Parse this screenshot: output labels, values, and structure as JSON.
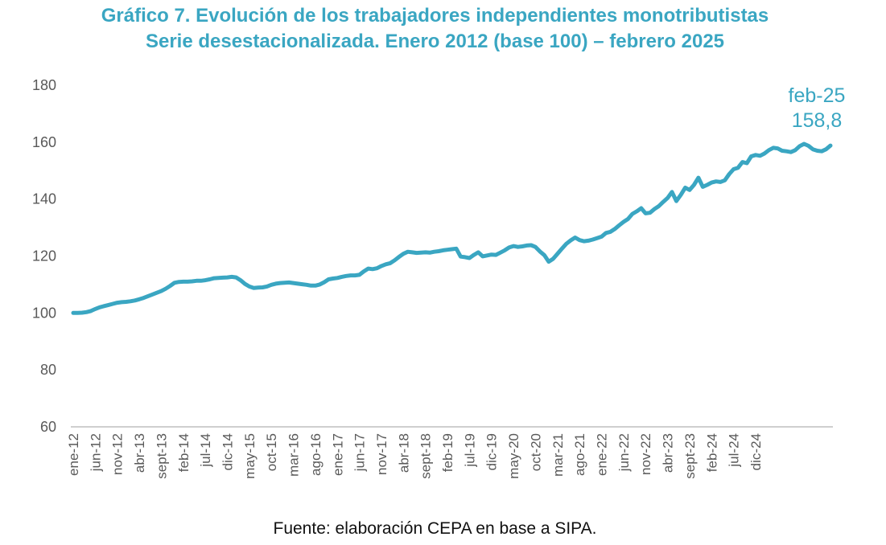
{
  "title_line1": "Gráfico 7. Evolución de los trabajadores independientes monotributistas",
  "title_line2": "Serie desestacionalizada. Enero 2012 (base 100) – febrero 2025",
  "source": "Fuente: elaboración CEPA en base a SIPA.",
  "colors": {
    "accent": "#3aa6c2",
    "axis": "#bfbfbf",
    "tick_text": "#595959"
  },
  "chart_data": {
    "type": "line",
    "ylim": [
      60,
      180
    ],
    "yticks": [
      60,
      80,
      100,
      120,
      140,
      160,
      180
    ],
    "xtick_labels": [
      "ene-12",
      "jun-12",
      "nov-12",
      "abr-13",
      "sept-13",
      "feb-14",
      "jul-14",
      "dic-14",
      "may-15",
      "oct-15",
      "mar-16",
      "ago-16",
      "ene-17",
      "jun-17",
      "nov-17",
      "abr-18",
      "sept-18",
      "feb-19",
      "jul-19",
      "dic-19",
      "may-20",
      "oct-20",
      "mar-21",
      "ago-21",
      "ene-22",
      "jun-22",
      "nov-22",
      "abr-23",
      "sept-23",
      "feb-24",
      "jul-24",
      "dic-24"
    ],
    "grid": false,
    "series": [
      {
        "x_start": "ene-12",
        "x_end": "feb-25",
        "values": [
          100.0,
          100.0,
          100.1,
          100.3,
          100.7,
          101.4,
          102.0,
          102.4,
          102.8,
          103.2,
          103.6,
          103.8,
          103.9,
          104.1,
          104.4,
          104.8,
          105.3,
          105.9,
          106.5,
          107.1,
          107.7,
          108.5,
          109.5,
          110.6,
          110.9,
          111.0,
          111.0,
          111.1,
          111.3,
          111.3,
          111.5,
          111.8,
          112.2,
          112.3,
          112.4,
          112.5,
          112.7,
          112.5,
          111.5,
          110.2,
          109.3,
          108.8,
          108.9,
          109.0,
          109.3,
          109.9,
          110.3,
          110.5,
          110.6,
          110.7,
          110.5,
          110.3,
          110.1,
          109.9,
          109.6,
          109.6,
          110.0,
          110.8,
          111.8,
          112.1,
          112.3,
          112.7,
          113.0,
          113.2,
          113.2,
          113.4,
          114.6,
          115.6,
          115.4,
          115.7,
          116.5,
          117.1,
          117.5,
          118.5,
          119.7,
          120.8,
          121.5,
          121.3,
          121.1,
          121.2,
          121.3,
          121.2,
          121.5,
          121.7,
          122.0,
          122.2,
          122.4,
          122.6,
          119.8,
          119.6,
          119.3,
          120.4,
          121.3,
          119.9,
          120.2,
          120.5,
          120.4,
          121.2,
          122.0,
          123.0,
          123.5,
          123.2,
          123.4,
          123.7,
          123.8,
          123.2,
          121.6,
          120.3,
          118.0,
          119.0,
          120.8,
          122.6,
          124.3,
          125.5,
          126.5,
          125.6,
          125.2,
          125.4,
          125.8,
          126.3,
          126.8,
          128.1,
          128.5,
          129.5,
          130.8,
          132.0,
          133.0,
          134.8,
          135.7,
          136.8,
          135.0,
          135.2,
          136.5,
          137.5,
          139.0,
          140.4,
          142.5,
          139.3,
          141.5,
          144.0,
          143.2,
          145.0,
          147.5,
          144.3,
          145.0,
          145.8,
          146.2,
          146.0,
          146.6,
          148.8,
          150.5,
          151.0,
          153.0,
          152.6,
          155.0,
          155.5,
          155.2,
          156.0,
          157.2,
          158.0,
          157.8,
          157.0,
          156.8,
          156.5,
          157.2,
          158.6,
          159.4,
          158.7,
          157.5,
          157.0,
          156.8,
          157.5,
          158.8
        ]
      }
    ],
    "annotation": {
      "line1": "feb-25",
      "line2": "158,8"
    }
  }
}
